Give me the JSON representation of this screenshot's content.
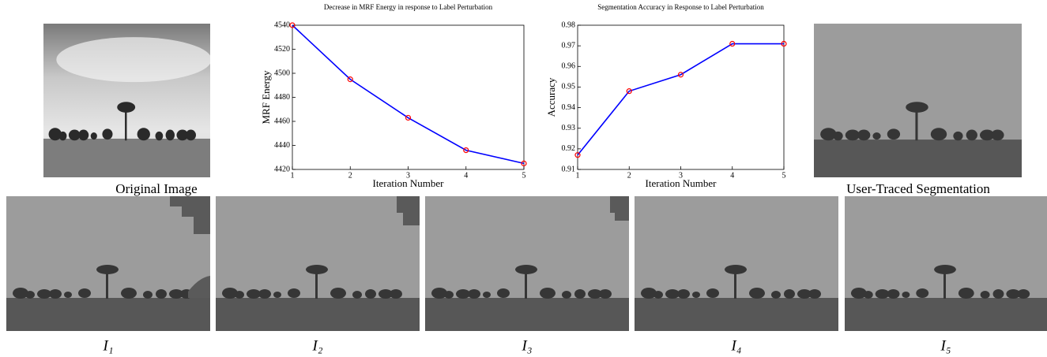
{
  "captions": {
    "original": "Original Image",
    "traced": "User-Traced Segmentation",
    "iterations": [
      "I₁",
      "I₂",
      "I₃",
      "I₄",
      "I₅"
    ]
  },
  "chart_data": [
    {
      "type": "line",
      "title": "Decrease in MRF Energy in response to Label Perturbation",
      "x_label": "Iteration Number",
      "y_label": "MRF Energy",
      "x": [
        1,
        2,
        3,
        4,
        5
      ],
      "series": [
        {
          "color": "#0000ff",
          "marker_color": "#ff0000",
          "values": [
            4540,
            4495,
            4463,
            4436,
            4425
          ]
        }
      ],
      "xlim": [
        1,
        5
      ],
      "xticks": [
        1,
        2,
        3,
        4,
        5
      ],
      "ylim": [
        4420,
        4540
      ],
      "yticks": [
        4420,
        4440,
        4460,
        4480,
        4500,
        4520,
        4540
      ]
    },
    {
      "type": "line",
      "title": "Segmentation Accuracy in Response to Label Perturbation",
      "x_label": "Iteration Number",
      "y_label": "Accuracy",
      "x": [
        1,
        2,
        3,
        4,
        5
      ],
      "series": [
        {
          "color": "#0000ff",
          "marker_color": "#ff0000",
          "values": [
            0.917,
            0.948,
            0.956,
            0.971,
            0.971
          ]
        }
      ],
      "xlim": [
        1,
        5
      ],
      "xticks": [
        1,
        2,
        3,
        4,
        5
      ],
      "ylim": [
        0.91,
        0.98
      ],
      "yticks": [
        0.91,
        0.92,
        0.93,
        0.94,
        0.95,
        0.96,
        0.97,
        0.98
      ]
    }
  ]
}
